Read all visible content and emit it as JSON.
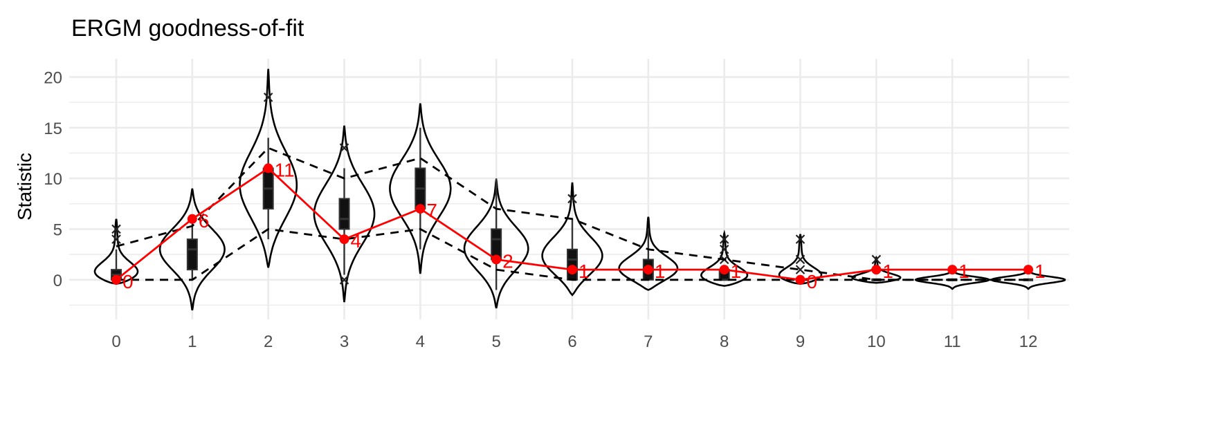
{
  "chart_data": {
    "type": "violin",
    "title": "ERGM goodness-of-fit",
    "xlabel": "",
    "ylabel": "Statistic",
    "categories": [
      "0",
      "1",
      "2",
      "3",
      "4",
      "5",
      "6",
      "7",
      "8",
      "9",
      "10",
      "11",
      "12"
    ],
    "yticks": [
      "0",
      "5",
      "10",
      "15",
      "20"
    ],
    "ylim": [
      -3.9,
      21.8
    ],
    "grid": true,
    "observed": {
      "values": [
        0,
        6,
        11,
        4,
        7,
        2,
        1,
        1,
        1,
        0,
        1,
        1,
        1
      ],
      "labels": [
        "0",
        "6",
        "11",
        "4",
        "7",
        "2",
        "1",
        "1",
        "1",
        "0",
        "1",
        "1",
        "1"
      ],
      "color": "#ff0000"
    },
    "upper_bound": [
      3.3,
      5.3,
      13,
      10,
      12,
      7,
      6,
      3,
      2,
      1,
      0,
      0,
      0
    ],
    "lower_bound": [
      0,
      0,
      5,
      4,
      5,
      1,
      0,
      0,
      0,
      0,
      0,
      0,
      0
    ],
    "simulated": [
      {
        "violin": [
          -0.4,
          6
        ],
        "mode": 0.2,
        "q1": 0,
        "median": 0.5,
        "q3": 1,
        "whisker": [
          0,
          3
        ],
        "outliers": [
          4,
          5
        ]
      },
      {
        "violin": [
          -3,
          9
        ],
        "mode": 3,
        "q1": 1,
        "median": 3,
        "q3": 4,
        "whisker": [
          0,
          6
        ],
        "outliers": []
      },
      {
        "violin": [
          1.2,
          20.8
        ],
        "mode": 9,
        "q1": 7,
        "median": 9,
        "q3": 11,
        "whisker": [
          4,
          14
        ],
        "outliers": [
          18
        ]
      },
      {
        "violin": [
          -2.2,
          15.2
        ],
        "mode": 6.5,
        "q1": 5,
        "median": 6,
        "q3": 8,
        "whisker": [
          0.5,
          11
        ],
        "outliers": [
          0,
          13
        ]
      },
      {
        "violin": [
          0.6,
          17.4
        ],
        "mode": 9,
        "q1": 7,
        "median": 9,
        "q3": 11,
        "whisker": [
          3,
          15
        ],
        "outliers": []
      },
      {
        "violin": [
          -2.8,
          9.9
        ],
        "mode": 3,
        "q1": 2,
        "median": 4,
        "q3": 5,
        "whisker": [
          -1,
          10
        ],
        "outliers": []
      },
      {
        "violin": [
          -1.5,
          9.6
        ],
        "mode": 2,
        "q1": 0,
        "median": 2,
        "q3": 3,
        "whisker": [
          0,
          6
        ],
        "outliers": [
          8
        ]
      },
      {
        "violin": [
          -1,
          6.2
        ],
        "mode": 0.8,
        "q1": 0,
        "median": 1,
        "q3": 2,
        "whisker": [
          0,
          5
        ],
        "outliers": []
      },
      {
        "violin": [
          -0.6,
          4.6
        ],
        "mode": 0,
        "q1": 0,
        "median": 0,
        "q3": 1,
        "whisker": [
          0,
          1
        ],
        "outliers": [
          2,
          3,
          4
        ]
      },
      {
        "violin": [
          -0.4,
          4.5
        ],
        "mode": 0,
        "q1": 0,
        "median": 0,
        "q3": 0,
        "whisker": [
          0,
          0
        ],
        "outliers": [
          1,
          2,
          4
        ]
      },
      {
        "violin": [
          -0.3,
          2.2
        ],
        "mode": 0,
        "q1": 0,
        "median": 0,
        "q3": 0,
        "whisker": [
          0,
          0
        ],
        "outliers": [
          2
        ]
      },
      {
        "violin": [
          -0.9,
          0.9
        ],
        "mode": 0,
        "q1": 0,
        "median": 0,
        "q3": 0,
        "whisker": [
          0,
          0
        ],
        "outliers": []
      },
      {
        "violin": [
          -0.9,
          0.9
        ],
        "mode": 0,
        "q1": 0,
        "median": 0,
        "q3": 0,
        "whisker": [
          0,
          0
        ],
        "outliers": []
      }
    ]
  }
}
